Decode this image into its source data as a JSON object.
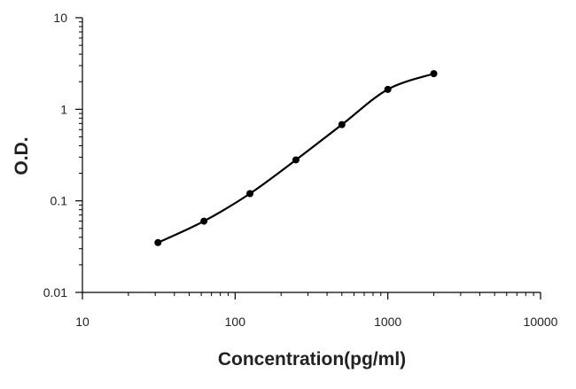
{
  "chart_data": {
    "type": "line",
    "title": "",
    "xlabel": "Concentration(pg/ml)",
    "ylabel": "O.D.",
    "xscale": "log",
    "yscale": "log",
    "xlim": [
      10,
      10000
    ],
    "ylim": [
      0.01,
      10
    ],
    "grid": false,
    "legend": "none",
    "line_color": "#000000",
    "marker": "circle",
    "smooth": true,
    "x_ticks": [
      {
        "value": 10,
        "label": "10"
      },
      {
        "value": 100,
        "label": "100"
      },
      {
        "value": 1000,
        "label": "1000"
      },
      {
        "value": 10000,
        "label": "10000"
      }
    ],
    "y_ticks": [
      {
        "value": 10,
        "label": "10"
      },
      {
        "value": 1,
        "label": "1"
      },
      {
        "value": 0.1,
        "label": "0.1"
      },
      {
        "value": 0.01,
        "label": "0.01"
      }
    ],
    "series": [
      {
        "points": [
          {
            "x": 31.25,
            "y": 0.035
          },
          {
            "x": 62.5,
            "y": 0.06
          },
          {
            "x": 125,
            "y": 0.12
          },
          {
            "x": 250,
            "y": 0.28
          },
          {
            "x": 500,
            "y": 0.68
          },
          {
            "x": 1000,
            "y": 1.65
          },
          {
            "x": 2000,
            "y": 2.45
          }
        ]
      }
    ]
  }
}
